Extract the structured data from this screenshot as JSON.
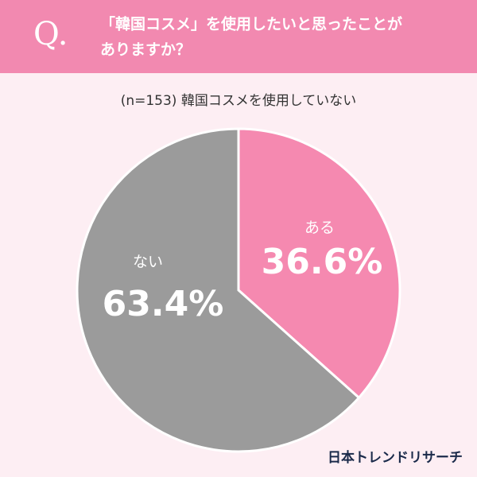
{
  "chart_data": {
    "type": "pie",
    "prefix": "Q.",
    "title_lines": [
      "「韓国コスメ」を使用したいと思ったことが",
      "ありますか？"
    ],
    "subtitle": "(n=153) 韓国コスメを使用していない",
    "categories": [
      "ある",
      "ない"
    ],
    "values": [
      36.6,
      63.4
    ],
    "value_labels": [
      "36.6%",
      "63.4%"
    ],
    "colors": [
      "#f589b0",
      "#9b9b9b"
    ],
    "source": "日本トレンドリサーチ"
  }
}
